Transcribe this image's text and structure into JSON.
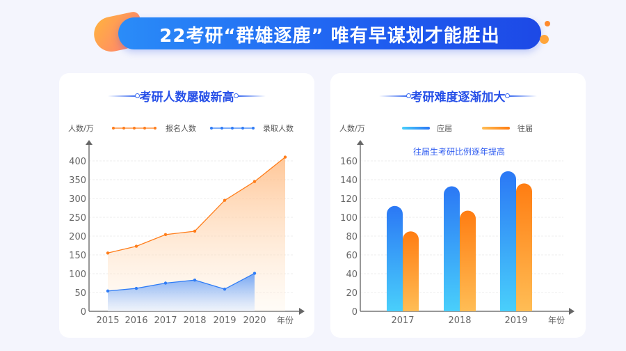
{
  "banner": {
    "title": "22考研“群雄逐鹿” 唯有早谋划才能胜出"
  },
  "chart_data": [
    {
      "type": "line",
      "title": "考研人数屡破新高",
      "ylabel": "人数/万",
      "xlabel": "年份",
      "categories": [
        "2015",
        "2016",
        "2017",
        "2018",
        "2019",
        "2020",
        ""
      ],
      "ylim": [
        0,
        400
      ],
      "yticks": [
        0,
        50,
        100,
        150,
        200,
        250,
        300,
        350,
        400
      ],
      "grid": true,
      "legend": "top",
      "series": [
        {
          "name": "报名人数",
          "color": "#ff7d1a",
          "values": [
            155,
            173,
            204,
            213,
            295,
            345,
            410
          ]
        },
        {
          "name": "录取人数",
          "color": "#2f7cf6",
          "values": [
            54,
            61,
            75,
            83,
            59,
            101,
            null
          ]
        }
      ]
    },
    {
      "type": "bar",
      "title": "考研难度逐渐加大",
      "ylabel": "人数/万",
      "xlabel": "年份",
      "annotation": "往届生考研比例逐年提高",
      "categories": [
        "2017",
        "2018",
        "2019"
      ],
      "ylim": [
        0,
        160
      ],
      "yticks": [
        0,
        20,
        40,
        60,
        80,
        100,
        120,
        140,
        160
      ],
      "grid": true,
      "legend": "top",
      "series": [
        {
          "name": "应届",
          "color": "#2f7cf6",
          "values": [
            112,
            133,
            149
          ]
        },
        {
          "name": "往届",
          "color": "#ff7d1a",
          "values": [
            85,
            107,
            136
          ]
        }
      ]
    }
  ]
}
